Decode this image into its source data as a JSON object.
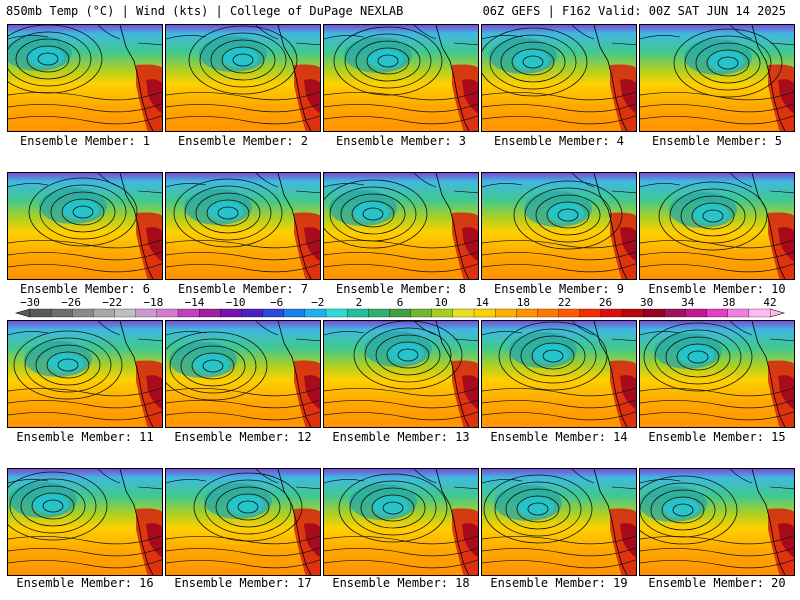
{
  "header": {
    "left": "850mb Temp (°C) | Wind (kts) | College of DuPage NEXLAB",
    "right": "06Z GEFS | F162 Valid: 00Z SAT JUN 14 2025"
  },
  "colorbar": {
    "labels": [
      "−30",
      "−26",
      "−22",
      "−18",
      "−14",
      "−10",
      "−6",
      "−2",
      "2",
      "6",
      "10",
      "14",
      "18",
      "22",
      "26",
      "30",
      "34",
      "38",
      "42"
    ],
    "colors": [
      "#5a5a5a",
      "#6e6e6e",
      "#8a8a8a",
      "#a8a8a8",
      "#c0c0c0",
      "#cc99cc",
      "#d27ad2",
      "#c040c0",
      "#a020a0",
      "#7a10b0",
      "#4a20c0",
      "#2a48e0",
      "#1a80f0",
      "#20b0f0",
      "#30d8d8",
      "#20c0a0",
      "#30b070",
      "#40a040",
      "#70b830",
      "#a8cc20",
      "#e8e020",
      "#ffd000",
      "#ffb000",
      "#ff9400",
      "#ff7800",
      "#ff5a00",
      "#f03000",
      "#d81010",
      "#b80808",
      "#980020",
      "#a01060",
      "#c01890",
      "#e040c0",
      "#f080e0",
      "#ffb8f0"
    ]
  },
  "panels": [
    {
      "caption": "Ensemble Member: 1"
    },
    {
      "caption": "Ensemble Member: 2"
    },
    {
      "caption": "Ensemble Member: 3"
    },
    {
      "caption": "Ensemble Member: 4"
    },
    {
      "caption": "Ensemble Member: 5"
    },
    {
      "caption": "Ensemble Member: 6"
    },
    {
      "caption": "Ensemble Member: 7"
    },
    {
      "caption": "Ensemble Member: 8"
    },
    {
      "caption": "Ensemble Member: 9"
    },
    {
      "caption": "Ensemble Member: 10"
    },
    {
      "caption": "Ensemble Member: 11"
    },
    {
      "caption": "Ensemble Member: 12"
    },
    {
      "caption": "Ensemble Member: 13"
    },
    {
      "caption": "Ensemble Member: 14"
    },
    {
      "caption": "Ensemble Member: 15"
    },
    {
      "caption": "Ensemble Member: 16"
    },
    {
      "caption": "Ensemble Member: 17"
    },
    {
      "caption": "Ensemble Member: 18"
    },
    {
      "caption": "Ensemble Member: 19"
    },
    {
      "caption": "Ensemble Member: 20"
    }
  ]
}
